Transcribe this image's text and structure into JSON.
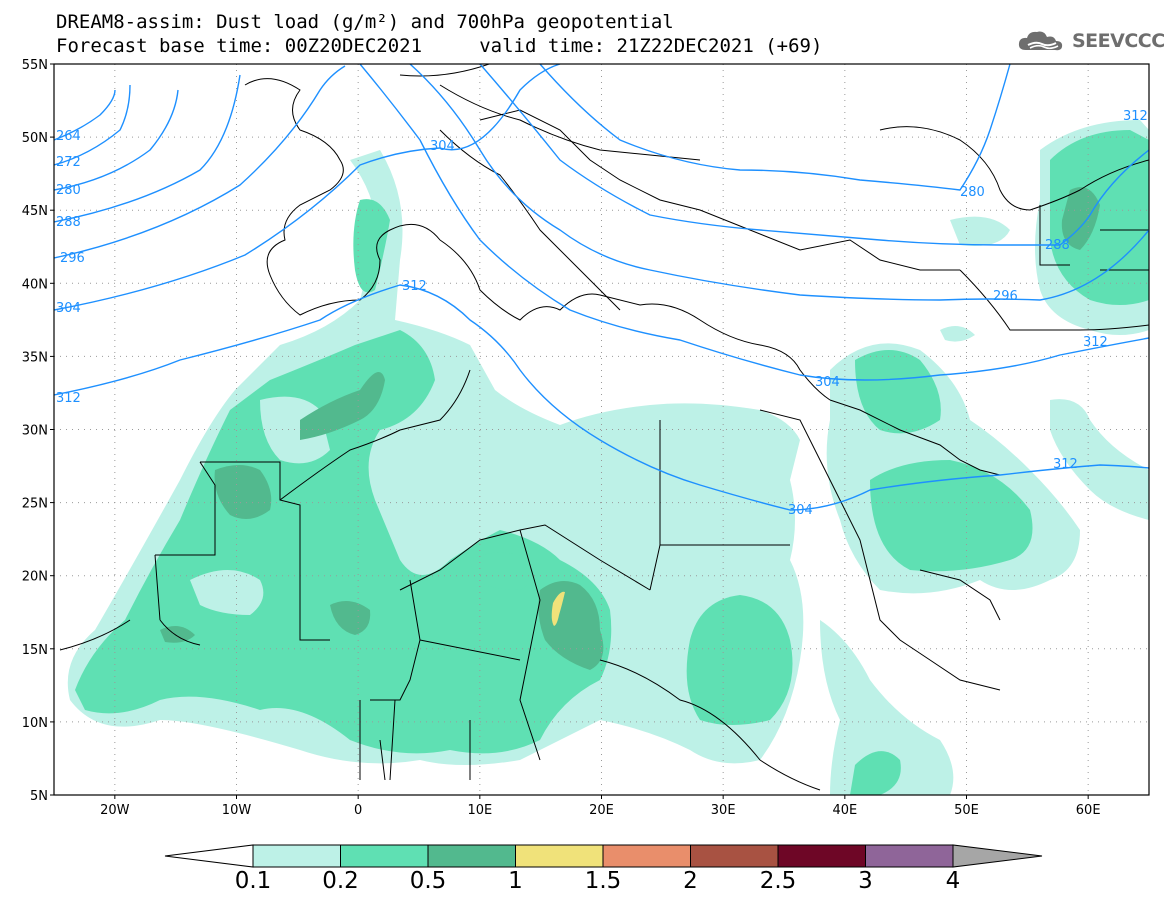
{
  "title": {
    "line1": "DREAM8-assim: Dust load (g/m²) and 700hPa geopotential",
    "line2": "Forecast base time: 00Z20DEC2021     valid time: 21Z22DEC2021 (+69)"
  },
  "logo": {
    "text": "SEEVCCC",
    "icon": "cloud-icon"
  },
  "map": {
    "lon_range": [
      -25,
      65
    ],
    "lat_range": [
      5,
      55
    ],
    "lat_labels": [
      "55N",
      "50N",
      "45N",
      "40N",
      "35N",
      "30N",
      "25N",
      "20N",
      "15N",
      "10N",
      "5N"
    ],
    "lon_labels": [
      "20W",
      "10W",
      "0",
      "10E",
      "20E",
      "30E",
      "40E",
      "50E",
      "60E"
    ],
    "contour_labels": [
      "264",
      "272",
      "280",
      "288",
      "296",
      "304",
      "312",
      "304",
      "312",
      "280",
      "288",
      "296",
      "304",
      "312",
      "304",
      "312",
      "312"
    ],
    "grid": "dotted"
  },
  "colorbar": {
    "labels": [
      "0.1",
      "0.2",
      "0.5",
      "1",
      "1.5",
      "2",
      "2.5",
      "3",
      "4"
    ],
    "colors": [
      "#bdf1e7",
      "#5fe0b3",
      "#52b98e",
      "#f0e27a",
      "#e98e6b",
      "#a85242",
      "#6e0626",
      "#8f6599"
    ]
  },
  "colors": {
    "dust_01": "#bdf1e7",
    "dust_02": "#5fe0b3",
    "dust_05": "#52b98e",
    "dust_1": "#f0e27a",
    "contour": "#1e90ff",
    "border": "#000000"
  }
}
